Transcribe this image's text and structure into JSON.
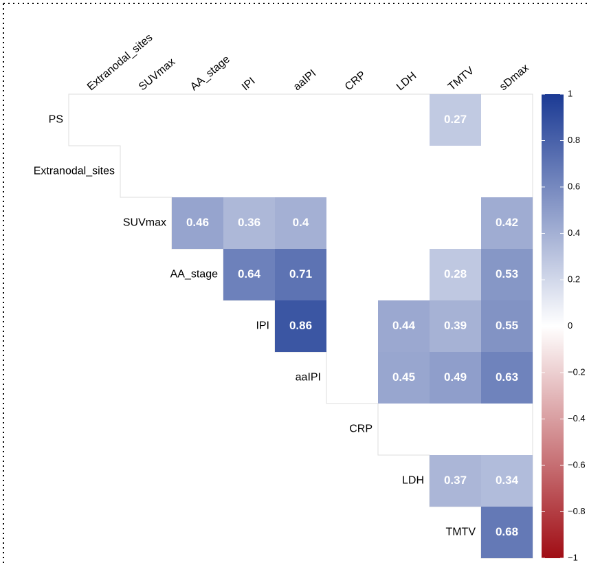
{
  "chart_data": {
    "type": "heatmap",
    "columns": [
      "Extranodal_sites",
      "SUVmax",
      "AA_stage",
      "IPI",
      "aaIPI",
      "CRP",
      "LDH",
      "TMTV",
      "sDmax"
    ],
    "rows": [
      "PS",
      "Extranodal_sites",
      "SUVmax",
      "AA_stage",
      "IPI",
      "aaIPI",
      "CRP",
      "LDH",
      "TMTV"
    ],
    "values": [
      [
        null,
        null,
        null,
        null,
        null,
        null,
        null,
        0.27,
        null
      ],
      [
        null,
        null,
        null,
        null,
        null,
        null,
        null,
        null,
        null
      ],
      [
        null,
        null,
        0.46,
        0.36,
        0.4,
        null,
        null,
        null,
        0.42
      ],
      [
        null,
        null,
        null,
        0.64,
        0.71,
        null,
        null,
        0.28,
        0.53
      ],
      [
        null,
        null,
        null,
        null,
        0.86,
        null,
        0.44,
        0.39,
        0.55
      ],
      [
        null,
        null,
        null,
        null,
        null,
        null,
        0.45,
        0.49,
        0.63
      ],
      [
        null,
        null,
        null,
        null,
        null,
        null,
        null,
        null,
        null
      ],
      [
        null,
        null,
        null,
        null,
        null,
        null,
        null,
        0.37,
        0.34
      ],
      [
        null,
        null,
        null,
        null,
        null,
        null,
        null,
        null,
        0.68
      ]
    ],
    "colorscale": [
      "#a00d14",
      "#ffffff",
      "#1b3a94"
    ],
    "clim": [
      -1,
      1
    ],
    "cticks": [
      1,
      0.8,
      0.6,
      0.4,
      0.2,
      0,
      {
        "value": -0.2,
        "label": "−0.2"
      },
      {
        "value": -0.4,
        "label": "−0.4"
      },
      {
        "value": -0.6,
        "label": "−0.6"
      },
      {
        "value": -0.8,
        "label": "−0.8"
      },
      {
        "value": -1,
        "label": "−1"
      }
    ]
  }
}
